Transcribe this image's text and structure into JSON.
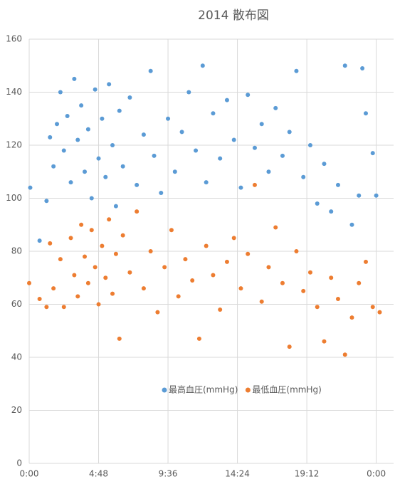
{
  "chart_data": {
    "type": "scatter",
    "title": "2014 散布図",
    "xlim": [
      0,
      1.05
    ],
    "xticks": [
      {
        "value": 0,
        "label": "0:00"
      },
      {
        "value": 0.2,
        "label": "4:48"
      },
      {
        "value": 0.4,
        "label": "9:36"
      },
      {
        "value": 0.6,
        "label": "14:24"
      },
      {
        "value": 0.8,
        "label": "19:12"
      },
      {
        "value": 1.0,
        "label": "0:00"
      }
    ],
    "ylim": [
      0,
      160
    ],
    "yticks": [
      0,
      20,
      40,
      60,
      80,
      100,
      120,
      140,
      160
    ],
    "grid": true,
    "legend": "inside-bottom",
    "series": [
      {
        "name": "最高血圧(mmHg)",
        "color": "#5b9bd5",
        "x": [
          0.003,
          0.03,
          0.05,
          0.06,
          0.07,
          0.08,
          0.09,
          0.1,
          0.11,
          0.12,
          0.13,
          0.14,
          0.15,
          0.16,
          0.17,
          0.18,
          0.19,
          0.2,
          0.21,
          0.22,
          0.23,
          0.24,
          0.25,
          0.26,
          0.27,
          0.29,
          0.31,
          0.33,
          0.35,
          0.36,
          0.38,
          0.4,
          0.42,
          0.44,
          0.46,
          0.48,
          0.5,
          0.51,
          0.53,
          0.55,
          0.57,
          0.59,
          0.61,
          0.63,
          0.65,
          0.67,
          0.69,
          0.71,
          0.73,
          0.75,
          0.77,
          0.79,
          0.81,
          0.83,
          0.85,
          0.87,
          0.89,
          0.91,
          0.93,
          0.95,
          0.96,
          0.97,
          0.99,
          1.0
        ],
        "values": [
          104,
          84,
          99,
          123,
          112,
          128,
          140,
          118,
          131,
          106,
          145,
          122,
          135,
          110,
          126,
          100,
          141,
          115,
          130,
          108,
          143,
          120,
          97,
          133,
          112,
          138,
          105,
          124,
          148,
          116,
          102,
          130,
          110,
          125,
          140,
          118,
          150,
          106,
          132,
          115,
          137,
          122,
          104,
          139,
          119,
          128,
          110,
          134,
          116,
          125,
          148,
          108,
          120,
          98,
          113,
          95,
          105,
          150,
          90,
          101,
          149,
          132,
          117,
          101
        ]
      },
      {
        "name": "最低血圧(mmHg)",
        "color": "#ed7d31",
        "x": [
          0.0,
          0.03,
          0.05,
          0.06,
          0.07,
          0.09,
          0.1,
          0.12,
          0.13,
          0.14,
          0.15,
          0.16,
          0.17,
          0.18,
          0.19,
          0.2,
          0.21,
          0.22,
          0.23,
          0.24,
          0.25,
          0.26,
          0.27,
          0.29,
          0.31,
          0.33,
          0.35,
          0.37,
          0.39,
          0.41,
          0.43,
          0.45,
          0.47,
          0.49,
          0.51,
          0.53,
          0.55,
          0.57,
          0.59,
          0.61,
          0.63,
          0.65,
          0.67,
          0.69,
          0.71,
          0.73,
          0.75,
          0.77,
          0.79,
          0.81,
          0.83,
          0.85,
          0.87,
          0.89,
          0.91,
          0.93,
          0.95,
          0.97,
          0.99,
          1.01
        ],
        "values": [
          68,
          62,
          59,
          83,
          66,
          77,
          59,
          85,
          71,
          63,
          90,
          78,
          68,
          88,
          74,
          60,
          82,
          70,
          92,
          64,
          79,
          47,
          86,
          72,
          95,
          66,
          80,
          57,
          74,
          88,
          63,
          77,
          69,
          47,
          82,
          71,
          58,
          76,
          85,
          66,
          79,
          105,
          61,
          74,
          89,
          68,
          44,
          80,
          65,
          72,
          59,
          46,
          70,
          62,
          41,
          55,
          68,
          76,
          59,
          57
        ]
      }
    ]
  }
}
